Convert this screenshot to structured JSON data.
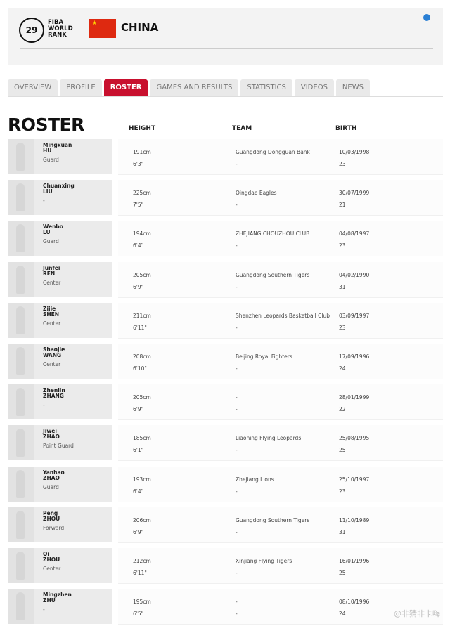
{
  "header": {
    "rank": "29",
    "rank_label_1": "FIBA",
    "rank_label_2": "WORLD",
    "rank_label_3": "RANK",
    "country": "CHINA",
    "flag_color": "#de2910"
  },
  "tabs": [
    {
      "label": "OVERVIEW"
    },
    {
      "label": "PROFILE"
    },
    {
      "label": "ROSTER",
      "active": true
    },
    {
      "label": "GAMES AND RESULTS"
    },
    {
      "label": "STATISTICS"
    },
    {
      "label": "VIDEOS"
    },
    {
      "label": "NEWS"
    }
  ],
  "roster": {
    "title": "ROSTER",
    "columns": [
      "HEIGHT",
      "TEAM",
      "BIRTH"
    ],
    "players": [
      {
        "first": "Mingxuan",
        "last": "HU",
        "pos": "Guard",
        "cm": "191cm",
        "ft": "6'3\"",
        "team": "Guangdong Dongguan Bank",
        "team2": "-",
        "dob": "10/03/1998",
        "age": "23"
      },
      {
        "first": "Chuanxing",
        "last": "LIU",
        "pos": "-",
        "cm": "225cm",
        "ft": "7'5\"",
        "team": "Qingdao Eagles",
        "team2": "-",
        "dob": "30/07/1999",
        "age": "21"
      },
      {
        "first": "Wenbo",
        "last": "LU",
        "pos": "Guard",
        "cm": "194cm",
        "ft": "6'4\"",
        "team": "ZHEJIANG CHOUZHOU CLUB",
        "team2": "-",
        "dob": "04/08/1997",
        "age": "23"
      },
      {
        "first": "Junfei",
        "last": "REN",
        "pos": "Center",
        "cm": "205cm",
        "ft": "6'9\"",
        "team": "Guangdong Southern Tigers",
        "team2": "-",
        "dob": "04/02/1990",
        "age": "31"
      },
      {
        "first": "Zijie",
        "last": "SHEN",
        "pos": "Center",
        "cm": "211cm",
        "ft": "6'11\"",
        "team": "Shenzhen Leopards Basketball Club",
        "team2": "-",
        "dob": "03/09/1997",
        "age": "23"
      },
      {
        "first": "Shaojie",
        "last": "WANG",
        "pos": "Center",
        "cm": "208cm",
        "ft": "6'10\"",
        "team": "Beijing Royal Fighters",
        "team2": "-",
        "dob": "17/09/1996",
        "age": "24"
      },
      {
        "first": "Zhenlin",
        "last": "ZHANG",
        "pos": "-",
        "cm": "205cm",
        "ft": "6'9\"",
        "team": "-",
        "team2": "-",
        "dob": "28/01/1999",
        "age": "22"
      },
      {
        "first": "Jiwei",
        "last": "ZHAO",
        "pos": "Point Guard",
        "cm": "185cm",
        "ft": "6'1\"",
        "team": "Liaoning Flying Leopards",
        "team2": "-",
        "dob": "25/08/1995",
        "age": "25"
      },
      {
        "first": "Yanhao",
        "last": "ZHAO",
        "pos": "Guard",
        "cm": "193cm",
        "ft": "6'4\"",
        "team": "Zhejiang Lions",
        "team2": "-",
        "dob": "25/10/1997",
        "age": "23"
      },
      {
        "first": "Peng",
        "last": "ZHOU",
        "pos": "Forward",
        "cm": "206cm",
        "ft": "6'9\"",
        "team": "Guangdong Southern Tigers",
        "team2": "-",
        "dob": "11/10/1989",
        "age": "31"
      },
      {
        "first": "Qi",
        "last": "ZHOU",
        "pos": "Center",
        "cm": "212cm",
        "ft": "6'11\"",
        "team": "Xinjiang Flying Tigers",
        "team2": "-",
        "dob": "16/01/1996",
        "age": "25"
      },
      {
        "first": "Mingzhen",
        "last": "ZHU",
        "pos": "-",
        "cm": "195cm",
        "ft": "6'5\"",
        "team": "-",
        "team2": "-",
        "dob": "08/10/1996",
        "age": "24"
      }
    ]
  },
  "watermark": "@非猜非卡嗨"
}
